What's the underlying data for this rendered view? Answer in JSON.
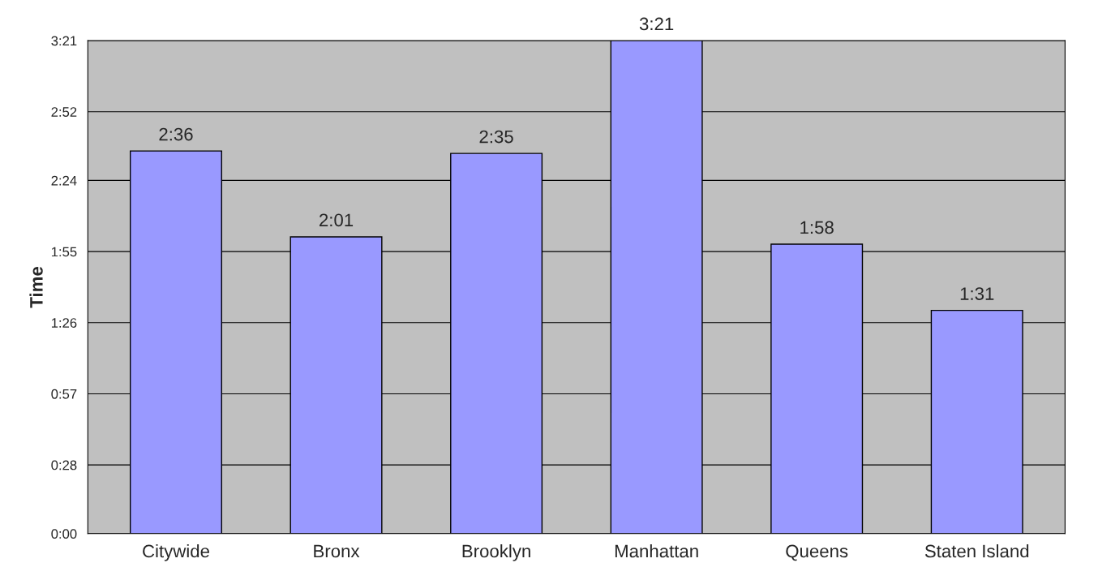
{
  "chart_data": {
    "type": "bar",
    "ylabel": "Time",
    "categories": [
      "Citywide",
      "Bronx",
      "Brooklyn",
      "Manhattan",
      "Queens",
      "Staten Island"
    ],
    "values": [
      156,
      121,
      155,
      201,
      118,
      91
    ],
    "value_labels": [
      "2:36",
      "2:01",
      "2:35",
      "3:21",
      "1:58",
      "1:31"
    ],
    "color": "#9999ff",
    "ylim": [
      0,
      201
    ],
    "yticks": [
      {
        "value": 0,
        "label": "0:00"
      },
      {
        "value": 28,
        "label": "0:28"
      },
      {
        "value": 57,
        "label": "0:57"
      },
      {
        "value": 86,
        "label": "1:26"
      },
      {
        "value": 115,
        "label": "1:55"
      },
      {
        "value": 144,
        "label": "2:24"
      },
      {
        "value": 172,
        "label": "2:52"
      },
      {
        "value": 201,
        "label": "3:21"
      }
    ],
    "grid": "y"
  }
}
